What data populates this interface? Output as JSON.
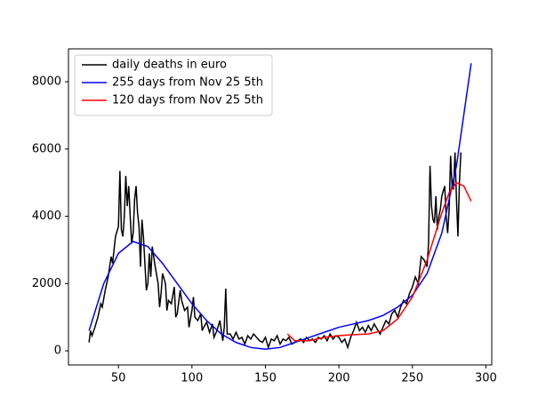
{
  "chart_data": {
    "type": "line",
    "legend": "upper left",
    "grid": false,
    "xlim": [
      16,
      304
    ],
    "xticks": [
      50,
      100,
      150,
      200,
      250,
      300
    ],
    "ylim": [
      -420,
      8980
    ],
    "yticks": [
      0,
      2000,
      4000,
      6000,
      8000
    ],
    "series": [
      {
        "name": "daily deaths in euro",
        "color": "#000000",
        "x": [
          30,
          31,
          32,
          34,
          36,
          38,
          39,
          41,
          43,
          45,
          46,
          48,
          50,
          51,
          52,
          53,
          54,
          55,
          56,
          57,
          58,
          59,
          60,
          61,
          62,
          63,
          64,
          65,
          66,
          67,
          68,
          69,
          70,
          71,
          72,
          73,
          75,
          77,
          78,
          79,
          80,
          82,
          83,
          84,
          86,
          88,
          89,
          90,
          92,
          93,
          95,
          97,
          98,
          100,
          101,
          102,
          104,
          106,
          107,
          108,
          110,
          112,
          114,
          115,
          117,
          119,
          121,
          122,
          123,
          124,
          126,
          128,
          130,
          132,
          134,
          136,
          138,
          140,
          142,
          144,
          146,
          148,
          150,
          152,
          154,
          156,
          158,
          160,
          162,
          164,
          166,
          168,
          170,
          172,
          174,
          176,
          178,
          180,
          182,
          184,
          186,
          188,
          190,
          192,
          194,
          196,
          198,
          200,
          202,
          204,
          206,
          208,
          210,
          212,
          214,
          216,
          218,
          220,
          222,
          224,
          226,
          228,
          230,
          232,
          234,
          236,
          238,
          240,
          242,
          244,
          246,
          248,
          250,
          252,
          254,
          256,
          258,
          260,
          261,
          262,
          263,
          264,
          265,
          266,
          267,
          268,
          269,
          270,
          272,
          273,
          274,
          275,
          276,
          277,
          278,
          279,
          280,
          281,
          282,
          283
        ],
        "values": [
          250,
          600,
          450,
          700,
          1000,
          1400,
          1300,
          1800,
          2200,
          2800,
          2600,
          3400,
          3700,
          5350,
          3600,
          3400,
          4000,
          5200,
          4300,
          4900,
          4000,
          3200,
          3500,
          4500,
          4900,
          4100,
          3700,
          2500,
          3900,
          3400,
          2600,
          1800,
          2000,
          2900,
          2200,
          3100,
          2500,
          2000,
          1300,
          1700,
          2300,
          2000,
          1200,
          1500,
          1400,
          1900,
          1000,
          1100,
          1800,
          1500,
          1200,
          1300,
          700,
          1200,
          1600,
          1000,
          900,
          1100,
          600,
          700,
          850,
          550,
          800,
          400,
          600,
          900,
          300,
          700,
          1850,
          500,
          500,
          350,
          550,
          350,
          400,
          200,
          450,
          350,
          500,
          400,
          300,
          250,
          400,
          100,
          350,
          300,
          450,
          200,
          350,
          300,
          400,
          200,
          250,
          300,
          350,
          250,
          400,
          300,
          350,
          250,
          400,
          350,
          450,
          300,
          500,
          350,
          450,
          400,
          250,
          350,
          100,
          400,
          600,
          850,
          600,
          700,
          550,
          750,
          600,
          800,
          650,
          500,
          700,
          900,
          800,
          1100,
          1200,
          1000,
          1300,
          1500,
          1400,
          1700,
          1900,
          2200,
          2000,
          2800,
          2700,
          2500,
          3200,
          5500,
          4300,
          3900,
          3800,
          4600,
          3600,
          4000,
          4200,
          4600,
          4900,
          4000,
          3500,
          4200,
          5800,
          4900,
          4800,
          5900,
          4500,
          3400,
          5000,
          5900
        ]
      },
      {
        "name": "255 days from Nov 25 5th",
        "color": "#0000ff",
        "x": [
          30,
          40,
          50,
          60,
          70,
          80,
          90,
          100,
          110,
          120,
          130,
          140,
          150,
          160,
          170,
          180,
          190,
          200,
          210,
          220,
          230,
          240,
          250,
          260,
          270,
          280,
          290
        ],
        "values": [
          600,
          2000,
          2900,
          3250,
          3100,
          2600,
          2000,
          1400,
          900,
          500,
          250,
          100,
          50,
          100,
          250,
          400,
          550,
          700,
          800,
          900,
          1050,
          1300,
          1650,
          2300,
          3500,
          5500,
          8550
        ]
      },
      {
        "name": "120 days from Nov 25 5th",
        "color": "#ff0000",
        "x": [
          165,
          170,
          180,
          190,
          200,
          210,
          220,
          230,
          240,
          250,
          260,
          270,
          275,
          280,
          285,
          290
        ],
        "values": [
          500,
          300,
          300,
          400,
          450,
          480,
          500,
          600,
          950,
          1600,
          2700,
          4100,
          4700,
          5000,
          4900,
          4450
        ]
      }
    ]
  }
}
